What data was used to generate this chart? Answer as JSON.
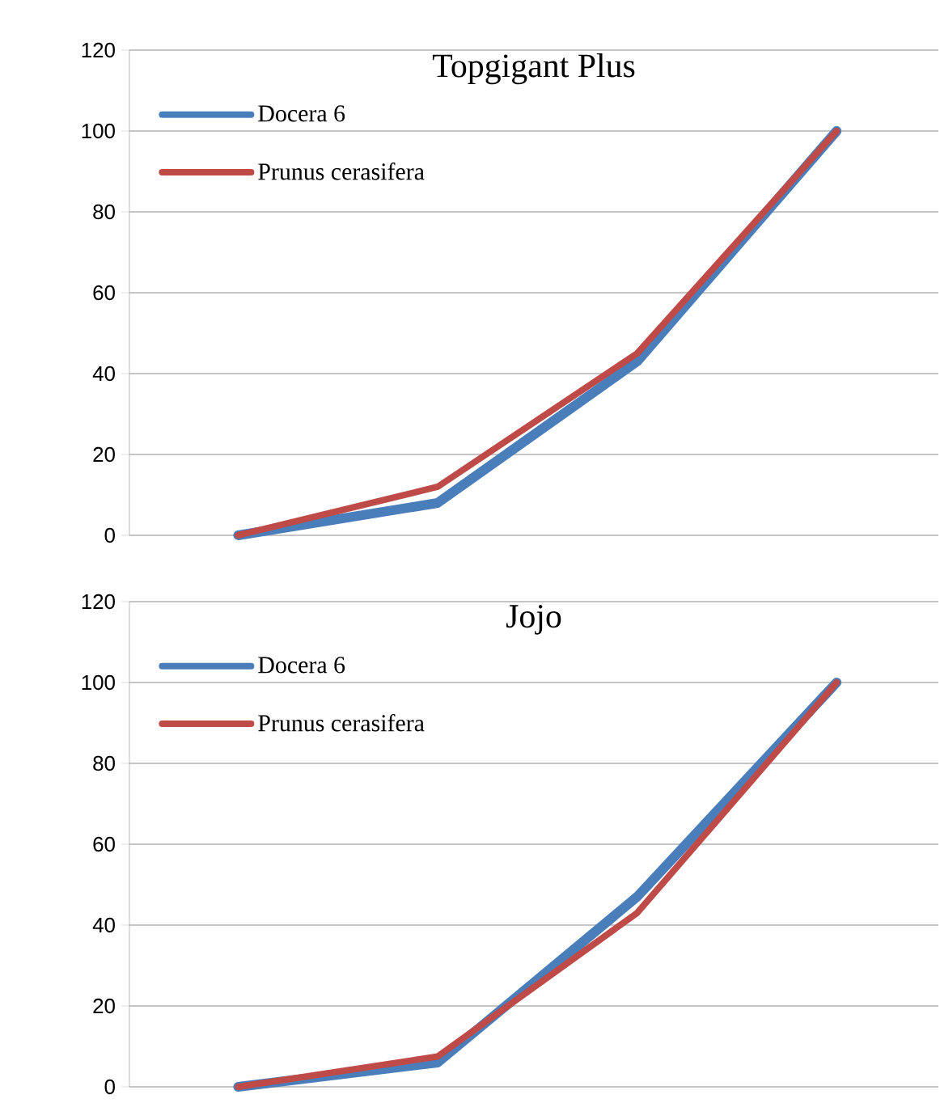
{
  "chart_data": [
    {
      "type": "line",
      "title": "Topgigant Plus",
      "categories": [
        null,
        null,
        null,
        null
      ],
      "ylim": [
        0,
        120
      ],
      "yticks": [
        0,
        20,
        40,
        60,
        80,
        100,
        120
      ],
      "grid": "y",
      "legend": "top left",
      "tick_labels": "y",
      "marker": "none",
      "line_style": "solid",
      "series": [
        {
          "name": "Docera 6",
          "color": "#4a7ebb",
          "values": [
            0,
            8,
            43,
            100
          ]
        },
        {
          "name": "Prunus cerasifera",
          "color": "#be4b48",
          "values": [
            0,
            12,
            45,
            100
          ]
        }
      ]
    },
    {
      "type": "line",
      "title": "Jojo",
      "categories": [
        null,
        null,
        null,
        null
      ],
      "ylim": [
        0,
        120
      ],
      "yticks": [
        0,
        20,
        40,
        60,
        80,
        100,
        120
      ],
      "grid": "y",
      "legend": "top left",
      "tick_labels": "y",
      "marker": "none",
      "line_style": "solid",
      "series": [
        {
          "name": "Docera 6",
          "color": "#4a7ebb",
          "values": [
            0,
            6,
            47,
            100
          ]
        },
        {
          "name": "Prunus cerasifera",
          "color": "#be4b48",
          "values": [
            0,
            7.5,
            43,
            100
          ]
        }
      ]
    }
  ]
}
